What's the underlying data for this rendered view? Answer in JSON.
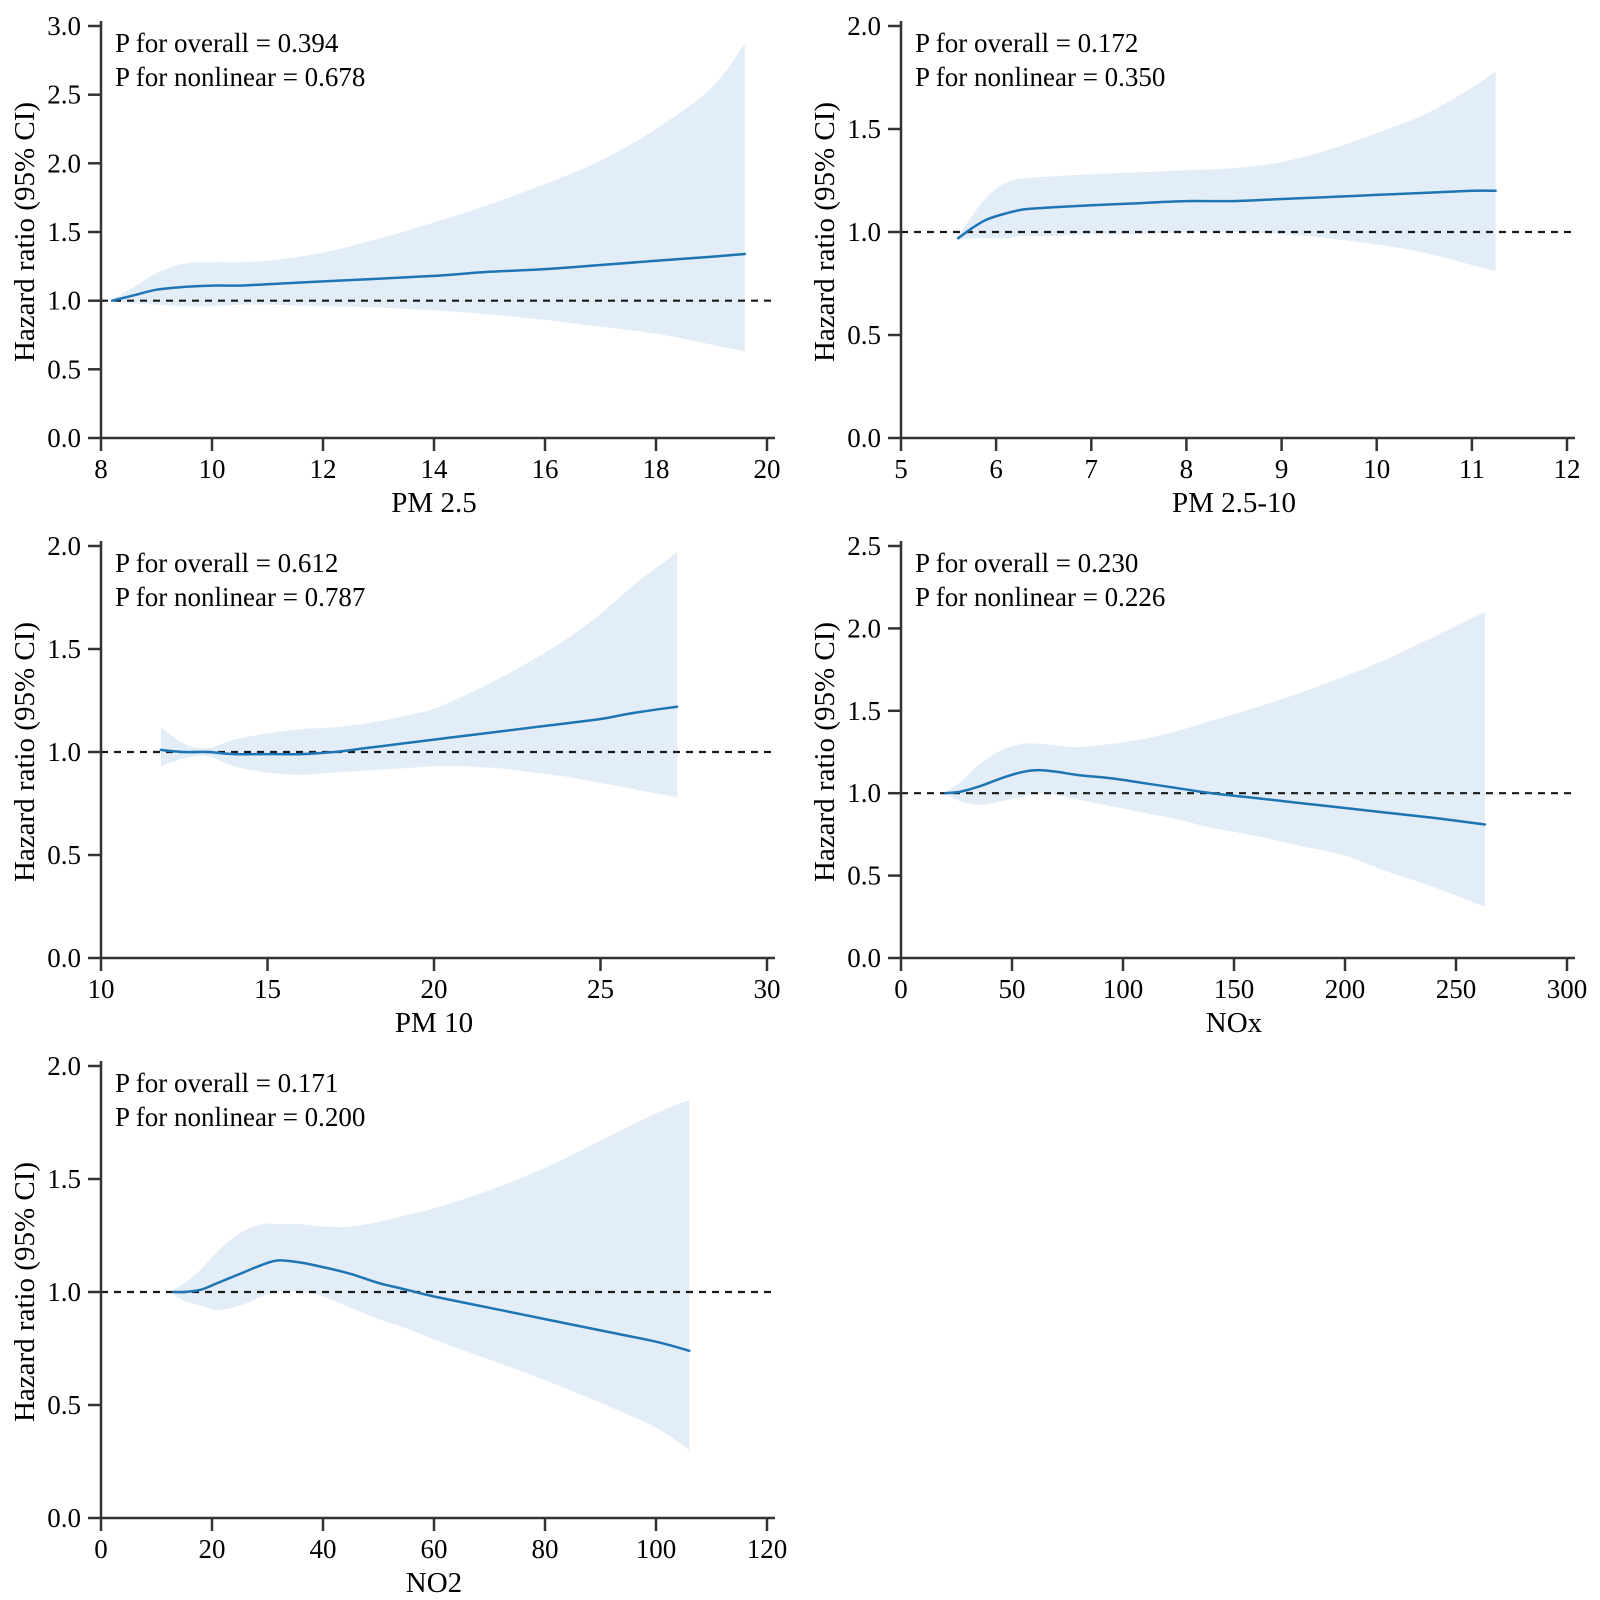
{
  "figure": {
    "background": "#ffffff",
    "colors": {
      "curve": "#1f74b4",
      "band": "#e3edf7",
      "refline": "#1a1a1a",
      "axis": "#333333",
      "text": "#000000"
    }
  },
  "chart_data": [
    {
      "id": "pm25",
      "type": "line",
      "xlabel": "PM 2.5",
      "ylabel": "Hazard ratio (95% CI)",
      "annotations": [
        "P for overall = 0.394",
        "P for nonlinear = 0.678"
      ],
      "xlim": [
        8,
        20
      ],
      "ylim": [
        0,
        3
      ],
      "xticks": [
        8,
        10,
        12,
        14,
        16,
        18,
        20
      ],
      "xtick_labels": [
        "8",
        "10",
        "12",
        "14",
        "16",
        "18",
        "20"
      ],
      "yticks": [
        0,
        0.5,
        1,
        1.5,
        2,
        2.5,
        3
      ],
      "ytick_labels": [
        "0.0",
        "0.5",
        "1.0",
        "1.5",
        "2.0",
        "2.5",
        "3.0"
      ],
      "reference_line": 1.0,
      "grid": false,
      "legend": null,
      "series": {
        "x": [
          8.2,
          8.6,
          9.0,
          9.5,
          10,
          10.5,
          11,
          12,
          13,
          14,
          15,
          16,
          17,
          18,
          19,
          19.6
        ],
        "hr": [
          1.0,
          1.04,
          1.08,
          1.1,
          1.11,
          1.11,
          1.12,
          1.14,
          1.16,
          1.18,
          1.21,
          1.23,
          1.26,
          1.29,
          1.32,
          1.34
        ],
        "lower": [
          0.99,
          0.98,
          0.97,
          0.96,
          0.96,
          0.97,
          0.97,
          0.96,
          0.95,
          0.93,
          0.9,
          0.86,
          0.81,
          0.76,
          0.68,
          0.63
        ],
        "upper": [
          1.01,
          1.1,
          1.2,
          1.27,
          1.28,
          1.28,
          1.29,
          1.35,
          1.45,
          1.57,
          1.7,
          1.85,
          2.02,
          2.25,
          2.55,
          2.87
        ]
      }
    },
    {
      "id": "pm25-10",
      "type": "line",
      "xlabel": "PM 2.5-10",
      "ylabel": "Hazard ratio (95% CI)",
      "annotations": [
        "P for overall = 0.172",
        "P for nonlinear = 0.350"
      ],
      "xlim": [
        5,
        12
      ],
      "ylim": [
        0,
        2
      ],
      "xticks": [
        5,
        6,
        7,
        8,
        9,
        10,
        11,
        12
      ],
      "xtick_labels": [
        "5",
        "6",
        "7",
        "8",
        "9",
        "10",
        "11",
        "12"
      ],
      "yticks": [
        0,
        0.5,
        1,
        1.5,
        2
      ],
      "ytick_labels": [
        "0.0",
        "0.5",
        "1.0",
        "1.5",
        "2.0"
      ],
      "reference_line": 1.0,
      "grid": false,
      "legend": null,
      "series": {
        "x": [
          5.6,
          5.75,
          5.9,
          6.1,
          6.3,
          6.6,
          7,
          7.5,
          8,
          8.5,
          9,
          9.5,
          10,
          10.5,
          11,
          11.25
        ],
        "hr": [
          0.97,
          1.02,
          1.06,
          1.09,
          1.11,
          1.12,
          1.13,
          1.14,
          1.15,
          1.15,
          1.16,
          1.17,
          1.18,
          1.19,
          1.2,
          1.2
        ],
        "lower": [
          0.96,
          0.97,
          0.97,
          0.97,
          0.98,
          0.98,
          0.99,
          0.99,
          1.0,
          1.0,
          0.99,
          0.97,
          0.94,
          0.9,
          0.84,
          0.81
        ],
        "upper": [
          0.98,
          1.08,
          1.17,
          1.24,
          1.26,
          1.27,
          1.28,
          1.29,
          1.3,
          1.31,
          1.34,
          1.4,
          1.48,
          1.57,
          1.7,
          1.78
        ]
      }
    },
    {
      "id": "pm10",
      "type": "line",
      "xlabel": "PM 10",
      "ylabel": "Hazard ratio (95% CI)",
      "annotations": [
        "P for overall = 0.612",
        "P for nonlinear = 0.787"
      ],
      "xlim": [
        10,
        30
      ],
      "ylim": [
        0,
        2
      ],
      "xticks": [
        10,
        15,
        20,
        25,
        30
      ],
      "xtick_labels": [
        "10",
        "15",
        "20",
        "25",
        "30"
      ],
      "yticks": [
        0,
        0.5,
        1,
        1.5,
        2
      ],
      "ytick_labels": [
        "0.0",
        "0.5",
        "1.0",
        "1.5",
        "2.0"
      ],
      "reference_line": 1.0,
      "grid": false,
      "legend": null,
      "series": {
        "x": [
          11.8,
          12.5,
          13.2,
          14,
          15,
          16,
          17,
          18,
          19,
          20,
          21,
          22,
          23,
          24,
          25,
          26,
          27.3
        ],
        "hr": [
          1.01,
          1.0,
          1.0,
          0.99,
          0.99,
          0.99,
          1.0,
          1.02,
          1.04,
          1.06,
          1.08,
          1.1,
          1.12,
          1.14,
          1.16,
          1.19,
          1.22
        ],
        "lower": [
          0.93,
          0.97,
          0.98,
          0.93,
          0.9,
          0.89,
          0.9,
          0.91,
          0.92,
          0.93,
          0.93,
          0.92,
          0.9,
          0.88,
          0.85,
          0.82,
          0.78
        ],
        "upper": [
          1.12,
          1.04,
          1.02,
          1.06,
          1.09,
          1.11,
          1.12,
          1.14,
          1.17,
          1.21,
          1.28,
          1.36,
          1.45,
          1.55,
          1.67,
          1.81,
          1.97
        ]
      }
    },
    {
      "id": "nox",
      "type": "line",
      "xlabel": "NOx",
      "ylabel": "Hazard ratio (95% CI)",
      "annotations": [
        "P for overall = 0.230",
        "P for nonlinear = 0.226"
      ],
      "xlim": [
        0,
        300
      ],
      "ylim": [
        0,
        2.5
      ],
      "xticks": [
        0,
        50,
        100,
        150,
        200,
        250,
        300
      ],
      "xtick_labels": [
        "0",
        "50",
        "100",
        "150",
        "200",
        "250",
        "300"
      ],
      "yticks": [
        0,
        0.5,
        1,
        1.5,
        2,
        2.5
      ],
      "ytick_labels": [
        "0.0",
        "0.5",
        "1.0",
        "1.5",
        "2.0",
        "2.5"
      ],
      "reference_line": 1.0,
      "grid": false,
      "legend": null,
      "series": {
        "x": [
          20,
          27,
          35,
          45,
          55,
          62,
          70,
          80,
          95,
          110,
          125,
          140,
          160,
          180,
          200,
          220,
          240,
          263
        ],
        "hr": [
          1.0,
          1.01,
          1.04,
          1.09,
          1.13,
          1.14,
          1.13,
          1.11,
          1.09,
          1.06,
          1.03,
          1.0,
          0.97,
          0.94,
          0.91,
          0.88,
          0.85,
          0.81
        ],
        "lower": [
          0.99,
          0.95,
          0.93,
          0.95,
          0.98,
          1.0,
          0.99,
          0.96,
          0.92,
          0.88,
          0.84,
          0.79,
          0.74,
          0.68,
          0.62,
          0.52,
          0.43,
          0.31
        ],
        "upper": [
          1.01,
          1.07,
          1.17,
          1.26,
          1.3,
          1.3,
          1.29,
          1.28,
          1.3,
          1.33,
          1.38,
          1.44,
          1.52,
          1.61,
          1.71,
          1.82,
          1.95,
          2.1
        ]
      }
    },
    {
      "id": "no2",
      "type": "line",
      "xlabel": "NO2",
      "ylabel": "Hazard ratio (95% CI)",
      "annotations": [
        "P for overall = 0.171",
        "P for nonlinear = 0.200"
      ],
      "xlim": [
        0,
        120
      ],
      "ylim": [
        0,
        2
      ],
      "xticks": [
        0,
        20,
        40,
        60,
        80,
        100,
        120
      ],
      "xtick_labels": [
        "0",
        "20",
        "40",
        "60",
        "80",
        "100",
        "120"
      ],
      "yticks": [
        0,
        0.5,
        1,
        1.5,
        2
      ],
      "ytick_labels": [
        "0.0",
        "0.5",
        "1.0",
        "1.5",
        "2.0"
      ],
      "reference_line": 1.0,
      "grid": false,
      "legend": null,
      "series": {
        "x": [
          13,
          15,
          18,
          21,
          25,
          29,
          32,
          36,
          40,
          45,
          50,
          55,
          60,
          70,
          80,
          90,
          100,
          106
        ],
        "hr": [
          1.0,
          1.0,
          1.01,
          1.04,
          1.08,
          1.12,
          1.14,
          1.13,
          1.11,
          1.08,
          1.04,
          1.01,
          0.98,
          0.93,
          0.88,
          0.83,
          0.78,
          0.74
        ],
        "lower": [
          0.99,
          0.96,
          0.94,
          0.92,
          0.94,
          0.98,
          1.0,
          1.0,
          0.98,
          0.93,
          0.88,
          0.84,
          0.79,
          0.7,
          0.61,
          0.51,
          0.4,
          0.3
        ],
        "upper": [
          1.01,
          1.04,
          1.1,
          1.18,
          1.26,
          1.3,
          1.3,
          1.3,
          1.29,
          1.29,
          1.31,
          1.34,
          1.37,
          1.45,
          1.55,
          1.67,
          1.79,
          1.85
        ]
      }
    }
  ]
}
